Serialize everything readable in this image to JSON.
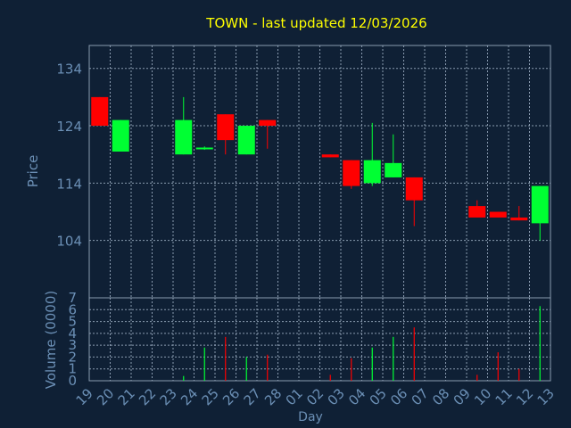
{
  "title": "TOWN - last updated 12/03/2026",
  "colors": {
    "background": "#0f2035",
    "title": "#ffff00",
    "axis_text": "#6b8fb5",
    "frame": "#8a9bb0",
    "grid": "#8a9bb0",
    "up": "#00ff33",
    "down": "#ff0000"
  },
  "chart_data": [
    {
      "type": "candlestick",
      "ylabel": "Price",
      "ylim": [
        94,
        138
      ],
      "y_ticks": [
        104,
        114,
        124,
        134
      ],
      "categories": [
        "19",
        "20",
        "21",
        "22",
        "23",
        "24",
        "25",
        "26",
        "27",
        "28",
        "01",
        "02",
        "03",
        "04",
        "05",
        "06",
        "07",
        "08",
        "09",
        "10",
        "11",
        "12",
        "13"
      ],
      "candles": [
        {
          "x": "19",
          "open": 129.0,
          "close": 124.0,
          "high": 129.0,
          "low": 124.0
        },
        {
          "x": "20",
          "open": 119.5,
          "close": 125.0,
          "high": 125.0,
          "low": 119.5
        },
        {
          "x": "23",
          "open": 119.0,
          "close": 125.0,
          "high": 129.0,
          "low": 119.0
        },
        {
          "x": "24",
          "open": 120.0,
          "close": 120.2,
          "high": 120.4,
          "low": 119.8
        },
        {
          "x": "25",
          "open": 126.0,
          "close": 121.5,
          "high": 126.0,
          "low": 119.0
        },
        {
          "x": "26",
          "open": 119.0,
          "close": 124.0,
          "high": 124.0,
          "low": 119.0
        },
        {
          "x": "27",
          "open": 125.0,
          "close": 124.0,
          "high": 125.0,
          "low": 120.0
        },
        {
          "x": "02",
          "open": 119.0,
          "close": 118.5,
          "high": 119.0,
          "low": 118.5
        },
        {
          "x": "03",
          "open": 118.0,
          "close": 113.5,
          "high": 118.0,
          "low": 113.0
        },
        {
          "x": "04",
          "open": 114.0,
          "close": 118.0,
          "high": 124.5,
          "low": 113.5
        },
        {
          "x": "05",
          "open": 115.0,
          "close": 117.5,
          "high": 122.5,
          "low": 115.0
        },
        {
          "x": "06",
          "open": 115.0,
          "close": 111.0,
          "high": 115.0,
          "low": 106.5
        },
        {
          "x": "09",
          "open": 110.0,
          "close": 108.0,
          "high": 111.0,
          "low": 108.0
        },
        {
          "x": "10",
          "open": 109.0,
          "close": 108.0,
          "high": 109.0,
          "low": 108.0
        },
        {
          "x": "11",
          "open": 108.0,
          "close": 107.5,
          "high": 110.0,
          "low": 107.5
        },
        {
          "x": "12",
          "open": 107.0,
          "close": 113.5,
          "high": 113.5,
          "low": 104.0
        }
      ]
    },
    {
      "type": "bar",
      "xlabel": "Day",
      "ylabel": "Volume (0000)",
      "ylim": [
        0,
        7
      ],
      "y_ticks": [
        0,
        1,
        2,
        3,
        4,
        5,
        6,
        7
      ],
      "bars": [
        {
          "x": "23",
          "value": 0.4,
          "direction": "up"
        },
        {
          "x": "24",
          "value": 2.8,
          "direction": "up"
        },
        {
          "x": "25",
          "value": 3.7,
          "direction": "down"
        },
        {
          "x": "26",
          "value": 2.0,
          "direction": "up"
        },
        {
          "x": "27",
          "value": 2.2,
          "direction": "down"
        },
        {
          "x": "02",
          "value": 0.5,
          "direction": "down"
        },
        {
          "x": "03",
          "value": 1.9,
          "direction": "down"
        },
        {
          "x": "04",
          "value": 2.8,
          "direction": "up"
        },
        {
          "x": "05",
          "value": 3.7,
          "direction": "up"
        },
        {
          "x": "06",
          "value": 4.5,
          "direction": "down"
        },
        {
          "x": "09",
          "value": 0.5,
          "direction": "down"
        },
        {
          "x": "10",
          "value": 2.4,
          "direction": "down"
        },
        {
          "x": "11",
          "value": 1.0,
          "direction": "down"
        },
        {
          "x": "12",
          "value": 6.3,
          "direction": "up"
        }
      ]
    }
  ]
}
